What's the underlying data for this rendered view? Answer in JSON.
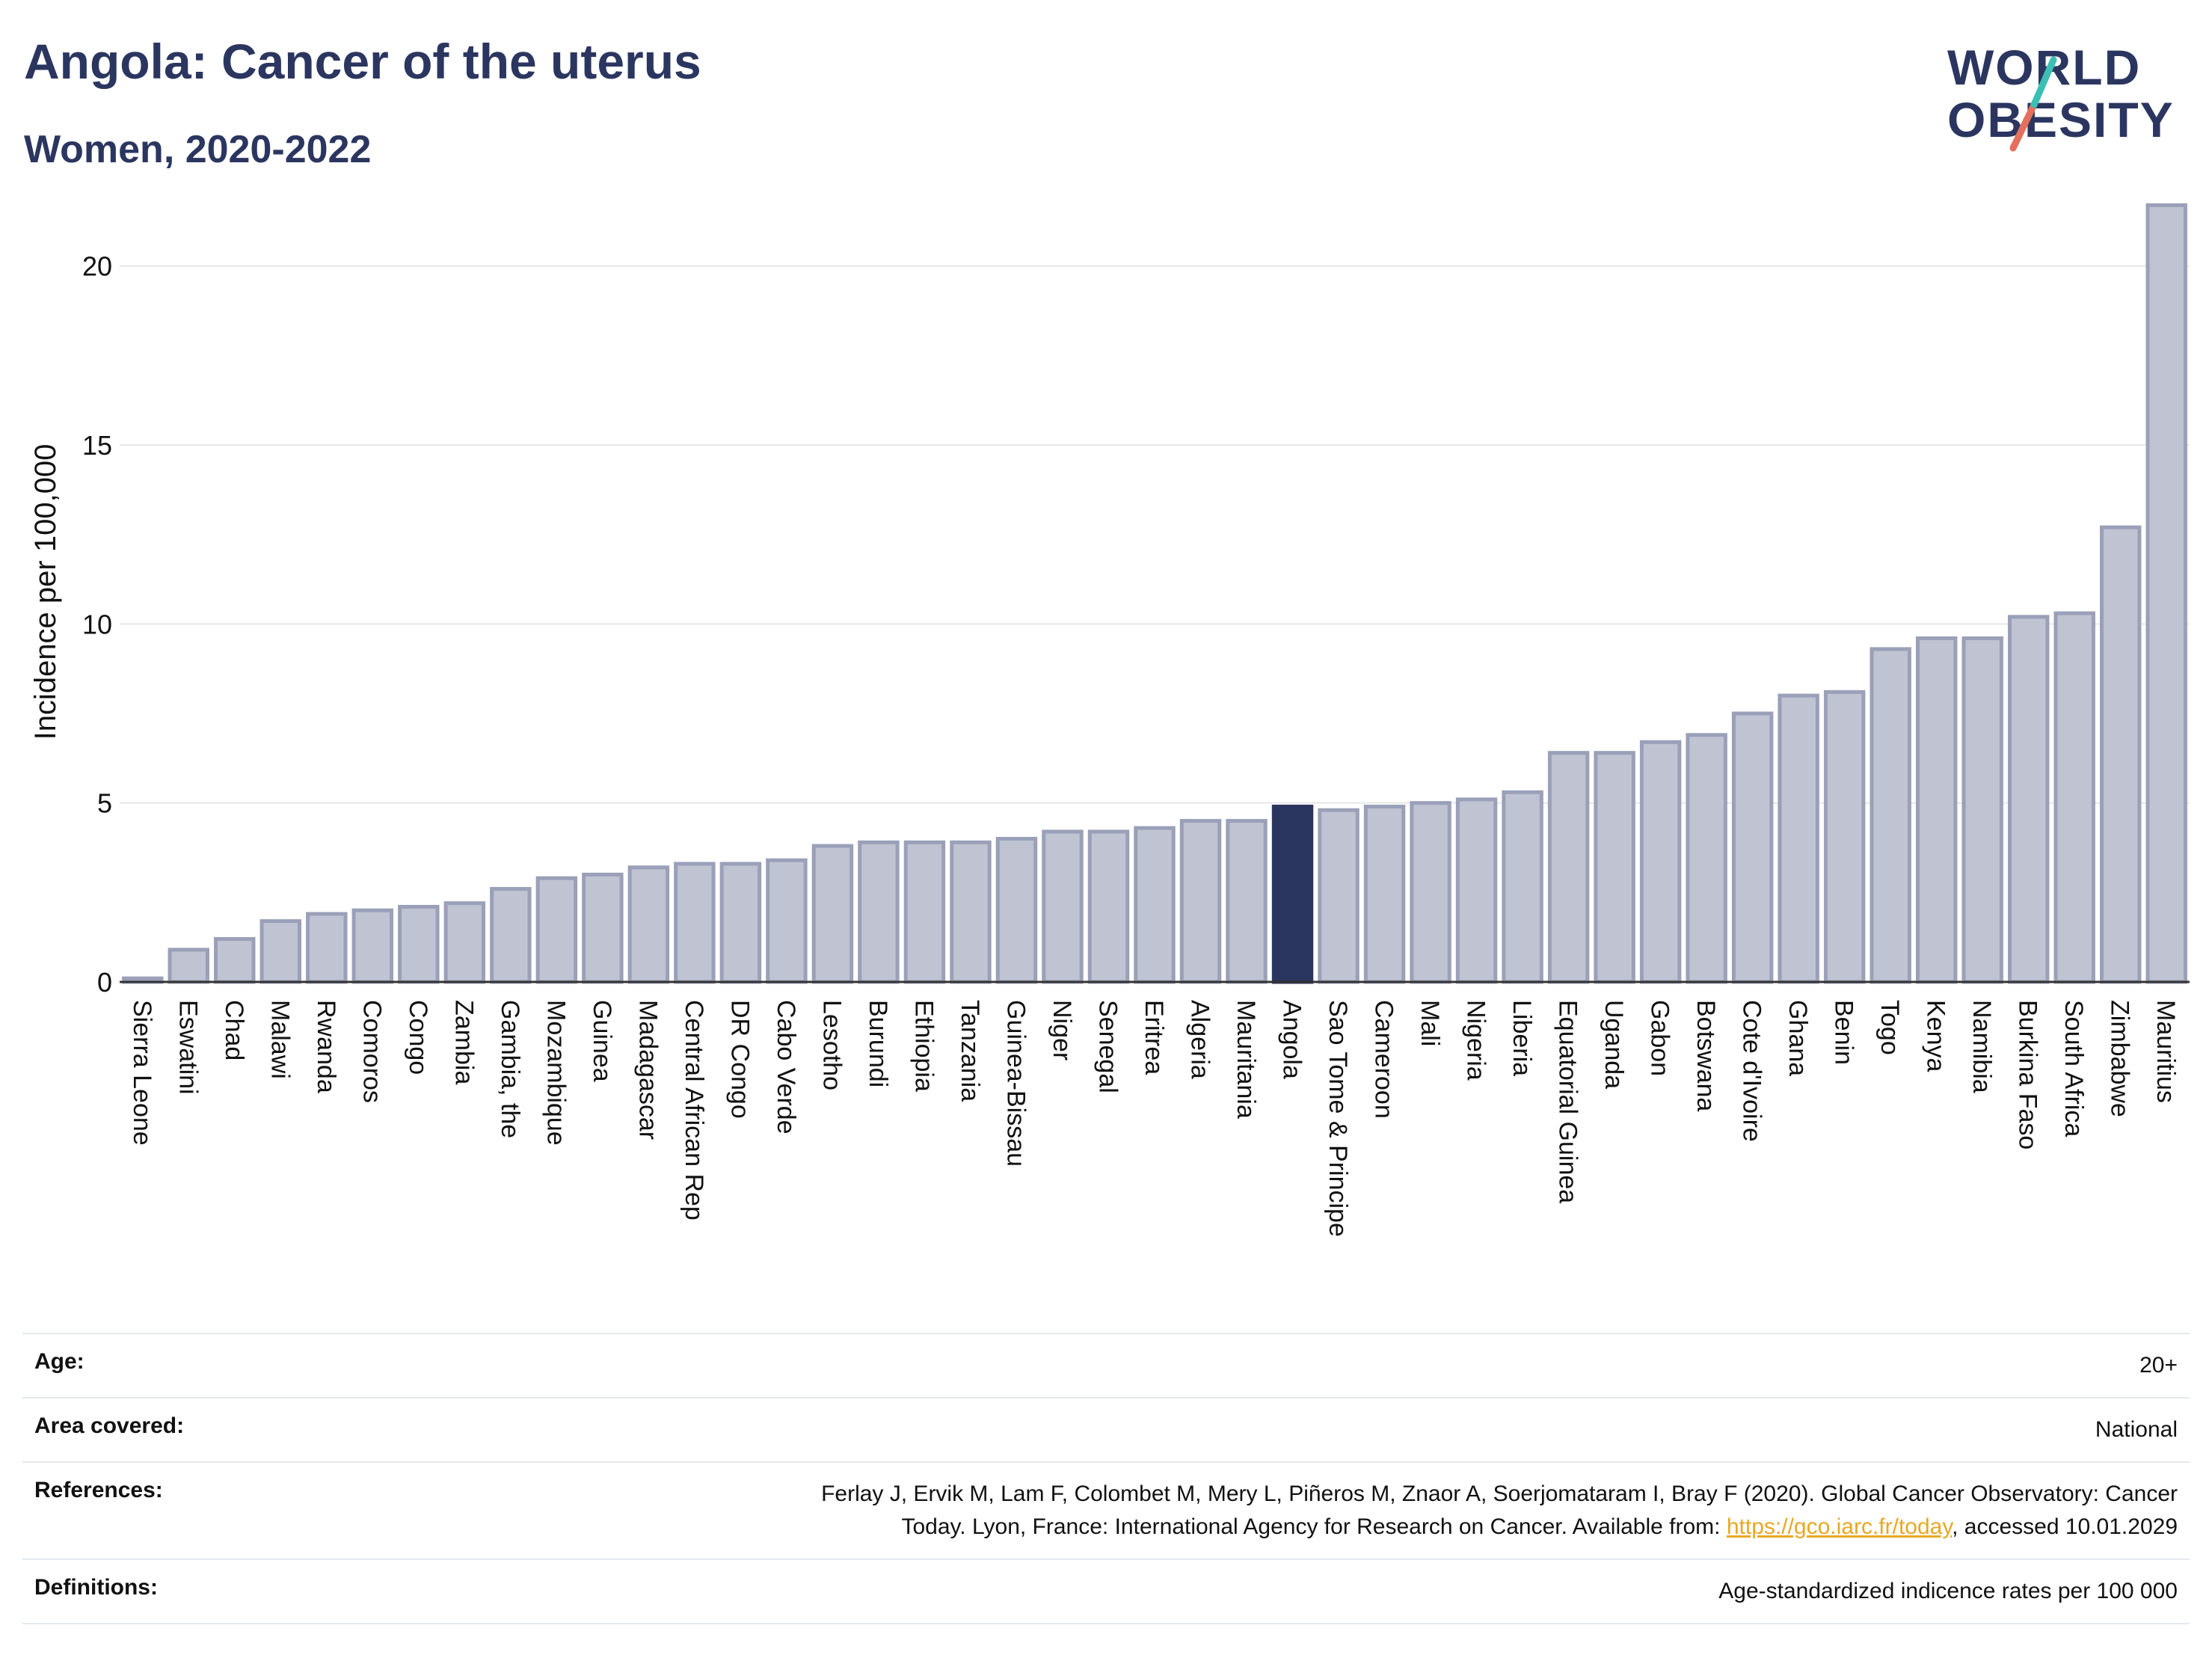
{
  "header": {
    "title": "Angola: Cancer of the uterus",
    "subtitle": "Women, 2020-2022"
  },
  "logo": {
    "line1": "WORLD",
    "line2": "OBESITY"
  },
  "chart_data": {
    "type": "bar",
    "ylabel": "Incidence per 100,000",
    "ylim": [
      0,
      22
    ],
    "yticks": [
      0,
      5,
      10,
      15,
      20
    ],
    "highlight": "Angola",
    "colors": {
      "bar": "#bfc3d2",
      "bar_edge": "#9aa0b8",
      "highlight": "#2b3660",
      "grid": "#e6e6e6",
      "axis": "#333333"
    },
    "categories": [
      "Sierra Leone",
      "Eswatini",
      "Chad",
      "Malawi",
      "Rwanda",
      "Comoros",
      "Congo",
      "Zambia",
      "Gambia, the",
      "Mozambique",
      "Guinea",
      "Madagascar",
      "Central African Rep",
      "DR Congo",
      "Cabo Verde",
      "Lesotho",
      "Burundi",
      "Ethiopia",
      "Tanzania",
      "Guinea-Bissau",
      "Niger",
      "Senegal",
      "Eritrea",
      "Algeria",
      "Mauritania",
      "Angola",
      "Sao Tome & Principe",
      "Cameroon",
      "Mali",
      "Nigeria",
      "Liberia",
      "Equatorial Guinea",
      "Uganda",
      "Gabon",
      "Botswana",
      "Cote d'Ivoire",
      "Ghana",
      "Benin",
      "Togo",
      "Kenya",
      "Namibia",
      "Burkina Faso",
      "South Africa",
      "Zimbabwe",
      "Mauritius"
    ],
    "values": [
      0.1,
      0.9,
      1.2,
      1.7,
      1.9,
      2.0,
      2.1,
      2.2,
      2.6,
      2.9,
      3.0,
      3.2,
      3.3,
      3.3,
      3.4,
      3.8,
      3.9,
      3.9,
      3.9,
      4.0,
      4.2,
      4.2,
      4.3,
      4.5,
      4.5,
      4.9,
      4.8,
      4.9,
      5.0,
      5.1,
      5.3,
      6.4,
      6.4,
      6.7,
      6.9,
      7.5,
      8.0,
      8.1,
      9.3,
      9.6,
      9.6,
      10.2,
      10.3,
      12.7,
      21.7
    ]
  },
  "meta": {
    "age_label": "Age:",
    "age_value": "20+",
    "area_label": "Area covered:",
    "area_value": "National",
    "ref_label": "References:",
    "ref_text_1": "Ferlay J, Ervik M, Lam F, Colombet M, Mery L, Piñeros M, Znaor A, Soerjomataram I, Bray F (2020). Global Cancer Observatory: Cancer",
    "ref_text_2": "Today. Lyon, France: International Agency for Research on Cancer. Available from: ",
    "ref_link": "https://gco.iarc.fr/today",
    "ref_text_3": ", accessed 10.01.2029",
    "def_label": "Definitions:",
    "def_value": "Age-standardized indicence rates per 100 000"
  }
}
